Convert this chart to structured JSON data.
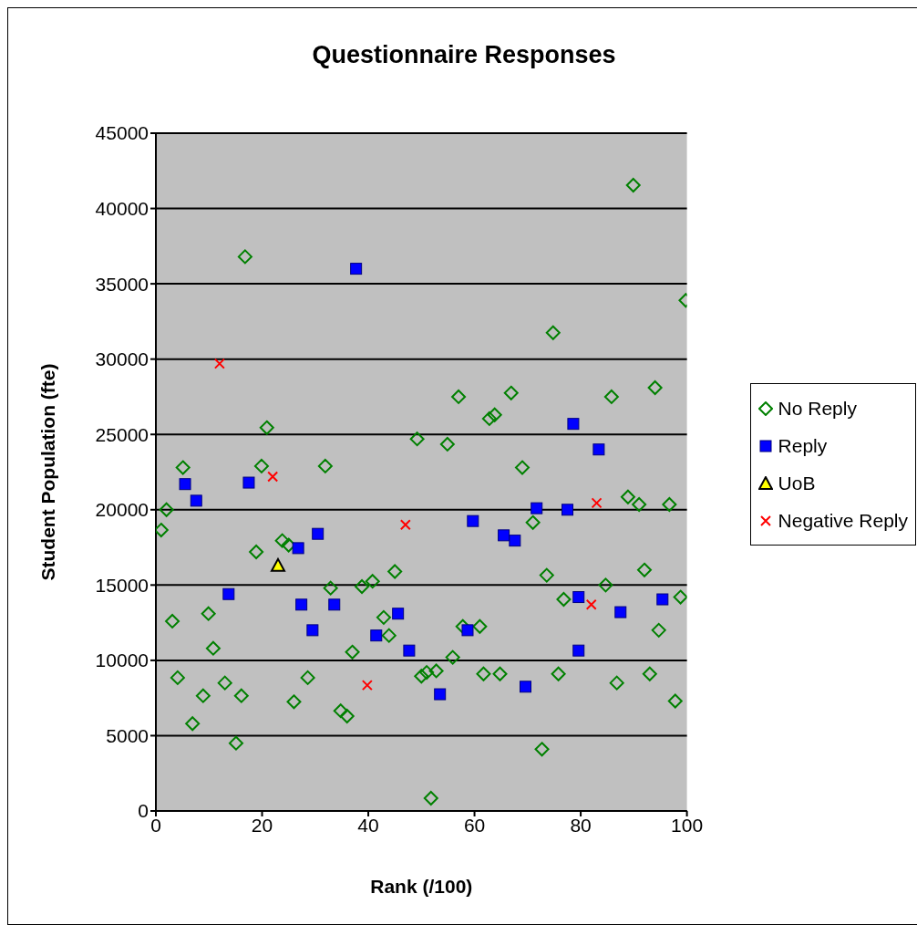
{
  "chart_data": {
    "type": "scatter",
    "title": "Questionnaire Responses",
    "xlabel": "Rank (/100)",
    "ylabel": "Student Population (fte)",
    "xlim": [
      0,
      100
    ],
    "xticks": [
      0,
      20,
      40,
      60,
      80,
      100
    ],
    "ylim": [
      0,
      45000
    ],
    "yticks": [
      0,
      5000,
      10000,
      15000,
      20000,
      25000,
      30000,
      35000,
      40000,
      45000
    ],
    "grid": "y",
    "legend": "right",
    "series": [
      {
        "name": "No Reply",
        "color": "#008000",
        "marker": "diamond",
        "x": [
          1,
          2,
          3.1,
          4.1,
          5.1,
          6.9,
          8.9,
          9.9,
          10.8,
          13,
          15.1,
          16.1,
          16.8,
          18.9,
          19.9,
          20.9,
          23.8,
          25,
          26,
          28.6,
          31.9,
          32.9,
          34.8,
          36,
          37,
          38.8,
          40.8,
          42.9,
          43.9,
          45,
          49.2,
          50,
          51,
          51.8,
          52.8,
          54.9,
          55.9,
          57,
          57.8,
          61,
          61.7,
          62.8,
          63.8,
          64.8,
          66.9,
          69,
          71,
          72.7,
          73.6,
          74.8,
          75.8,
          76.8,
          84.7,
          85.8,
          86.8,
          88.9,
          89.9,
          91,
          92,
          93,
          94,
          94.7,
          96.7,
          97.8,
          98.8,
          99.8
        ],
        "values": [
          18650,
          20000,
          12600,
          8850,
          22800,
          5800,
          7650,
          13100,
          10800,
          8500,
          4500,
          7650,
          36800,
          17200,
          22900,
          25450,
          17950,
          17650,
          7250,
          8850,
          22900,
          14800,
          6650,
          6300,
          10550,
          14900,
          15250,
          12850,
          11650,
          15900,
          24700,
          8950,
          9200,
          850,
          9300,
          24350,
          10200,
          27500,
          12250,
          12250,
          9100,
          26050,
          26300,
          9100,
          27750,
          22800,
          19150,
          4100,
          15650,
          31750,
          9100,
          14050,
          15000,
          27500,
          8500,
          20850,
          41550,
          20350,
          16000,
          9100,
          28100,
          12000,
          20350,
          7300,
          14200,
          33900
        ]
      },
      {
        "name": "Reply",
        "color": "#0000ff",
        "marker": "square",
        "x": [
          5.5,
          7.6,
          13.7,
          17.5,
          26.8,
          27.4,
          29.5,
          30.5,
          33.6,
          37.7,
          41.5,
          45.6,
          47.7,
          53.5,
          58.7,
          59.7,
          65.5,
          67.6,
          69.6,
          71.7,
          77.5,
          78.6,
          79.6,
          79.6,
          83.4,
          87.5,
          95.4
        ],
        "values": [
          21700,
          20600,
          14400,
          21800,
          17450,
          13700,
          12000,
          18400,
          13700,
          36000,
          11650,
          13100,
          10650,
          7750,
          12000,
          19250,
          18300,
          17950,
          8250,
          20100,
          20000,
          25700,
          14200,
          10650,
          24000,
          13200,
          14050
        ]
      },
      {
        "name": "UoB",
        "color": "#ffff00",
        "marker": "triangle",
        "x": [
          23
        ],
        "values": [
          16300
        ]
      },
      {
        "name": "Negative Reply",
        "color": "#ff0000",
        "marker": "cross",
        "x": [
          12,
          22,
          39.8,
          47,
          82,
          83
        ],
        "values": [
          29700,
          22200,
          8350,
          19000,
          13700,
          20450
        ]
      }
    ]
  }
}
